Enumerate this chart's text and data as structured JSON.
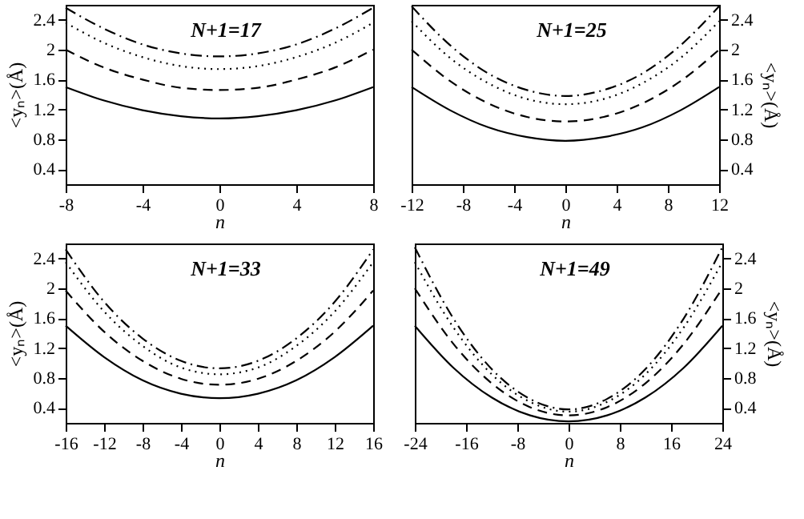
{
  "chart_data": [
    {
      "type": "line",
      "title": "N+1=17",
      "xlabel": "n",
      "ylabel": "<yₙ>(Å)",
      "xlim": [
        -8,
        8
      ],
      "xticks": [
        -8,
        -4,
        0,
        4,
        8
      ],
      "ylim": [
        0.2,
        2.6
      ],
      "yticks": [
        0.4,
        0.8,
        1.2,
        1.6,
        2,
        2.4
      ],
      "grid": false,
      "x": [
        -8,
        -6,
        -4,
        -2,
        0,
        2,
        4,
        6,
        8
      ],
      "series": [
        {
          "color": "#000000",
          "line_style": "solid",
          "values": [
            1.5,
            1.32,
            1.19,
            1.11,
            1.08,
            1.11,
            1.19,
            1.32,
            1.5
          ]
        },
        {
          "color": "#000000",
          "line_style": "dashed",
          "values": [
            2.0,
            1.76,
            1.6,
            1.49,
            1.46,
            1.49,
            1.6,
            1.76,
            2.0
          ]
        },
        {
          "color": "#000000",
          "line_style": "dotted",
          "values": [
            2.36,
            2.09,
            1.9,
            1.78,
            1.74,
            1.78,
            1.9,
            2.09,
            2.36
          ]
        },
        {
          "color": "#000000",
          "line_style": "dashdot",
          "values": [
            2.56,
            2.28,
            2.07,
            1.95,
            1.91,
            1.95,
            2.07,
            2.28,
            2.56
          ]
        }
      ]
    },
    {
      "type": "line",
      "title": "N+1=25",
      "xlabel": "n",
      "ylabel": "<yₙ>(Å)",
      "xlim": [
        -12,
        12
      ],
      "xticks": [
        -12,
        -8,
        -4,
        0,
        4,
        8,
        12
      ],
      "ylim": [
        0.2,
        2.6
      ],
      "yticks": [
        0.4,
        0.8,
        1.2,
        1.6,
        2,
        2.4
      ],
      "grid": false,
      "x": [
        -12,
        -9,
        -6,
        -3,
        0,
        3,
        6,
        9,
        12
      ],
      "series": [
        {
          "color": "#000000",
          "line_style": "solid",
          "values": [
            1.5,
            1.19,
            0.96,
            0.83,
            0.78,
            0.83,
            0.96,
            1.19,
            1.5
          ]
        },
        {
          "color": "#000000",
          "line_style": "dashed",
          "values": [
            2.0,
            1.58,
            1.28,
            1.1,
            1.04,
            1.1,
            1.28,
            1.58,
            2.0
          ]
        },
        {
          "color": "#000000",
          "line_style": "dotted",
          "values": [
            2.38,
            1.89,
            1.55,
            1.34,
            1.27,
            1.34,
            1.55,
            1.89,
            2.38
          ]
        },
        {
          "color": "#000000",
          "line_style": "dashdot",
          "values": [
            2.58,
            2.06,
            1.68,
            1.46,
            1.38,
            1.46,
            1.68,
            2.06,
            2.58
          ]
        }
      ]
    },
    {
      "type": "line",
      "title": "N+1=33",
      "xlabel": "n",
      "ylabel": "<yₙ>(Å)",
      "xlim": [
        -16,
        16
      ],
      "xticks": [
        -16,
        -12,
        -8,
        -4,
        0,
        4,
        8,
        12,
        16
      ],
      "ylim": [
        0.2,
        2.6
      ],
      "yticks": [
        0.4,
        0.8,
        1.2,
        1.6,
        2,
        2.4
      ],
      "grid": false,
      "x": [
        -16,
        -12,
        -8,
        -4,
        0,
        4,
        8,
        12,
        16
      ],
      "series": [
        {
          "color": "#000000",
          "line_style": "solid",
          "values": [
            1.5,
            1.08,
            0.77,
            0.59,
            0.53,
            0.59,
            0.77,
            1.08,
            1.5
          ]
        },
        {
          "color": "#000000",
          "line_style": "dashed",
          "values": [
            1.97,
            1.42,
            1.03,
            0.79,
            0.71,
            0.79,
            1.03,
            1.42,
            1.97
          ]
        },
        {
          "color": "#000000",
          "line_style": "dotted",
          "values": [
            2.35,
            1.69,
            1.23,
            0.94,
            0.85,
            0.94,
            1.23,
            1.69,
            2.35
          ]
        },
        {
          "color": "#000000",
          "line_style": "dashdot",
          "values": [
            2.52,
            1.82,
            1.33,
            1.03,
            0.93,
            1.03,
            1.33,
            1.82,
            2.52
          ]
        }
      ]
    },
    {
      "type": "line",
      "title": "N+1=49",
      "xlabel": "n",
      "ylabel": "<yₙ>(Å)",
      "xlim": [
        -24,
        24
      ],
      "xticks": [
        -24,
        -16,
        -8,
        0,
        8,
        16,
        24
      ],
      "ylim": [
        0.2,
        2.6
      ],
      "yticks": [
        0.4,
        0.8,
        1.2,
        1.6,
        2,
        2.4
      ],
      "grid": false,
      "x": [
        -24,
        -18,
        -12,
        -6,
        0,
        6,
        12,
        18,
        24
      ],
      "series": [
        {
          "color": "#000000",
          "line_style": "solid",
          "values": [
            1.5,
            0.94,
            0.54,
            0.3,
            0.22,
            0.3,
            0.54,
            0.94,
            1.5
          ]
        },
        {
          "color": "#000000",
          "line_style": "dashed",
          "values": [
            2.0,
            1.26,
            0.73,
            0.41,
            0.3,
            0.41,
            0.73,
            1.26,
            2.0
          ]
        },
        {
          "color": "#000000",
          "line_style": "dotted",
          "values": [
            2.35,
            1.48,
            0.85,
            0.48,
            0.35,
            0.48,
            0.85,
            1.48,
            2.35
          ]
        },
        {
          "color": "#000000",
          "line_style": "dashdot",
          "values": [
            2.55,
            1.6,
            0.92,
            0.52,
            0.38,
            0.52,
            0.92,
            1.6,
            2.55
          ]
        }
      ]
    }
  ]
}
